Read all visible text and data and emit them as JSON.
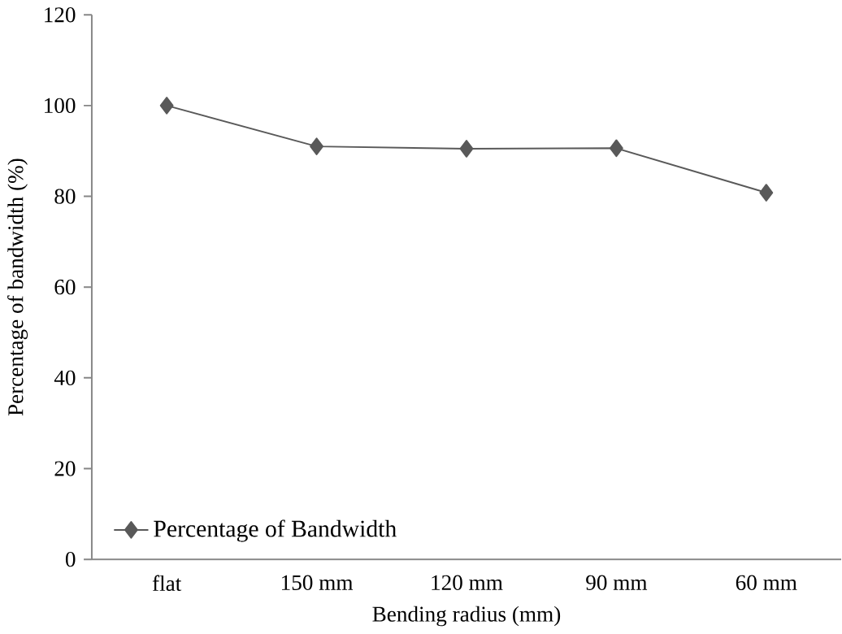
{
  "chart_data": {
    "type": "line",
    "xlabel": "Bending radius (mm)",
    "ylabel": "Percentage of bandwidth (%)",
    "categories": [
      "flat",
      "150 mm",
      "120 mm",
      "90 mm",
      "60 mm"
    ],
    "series": [
      {
        "name": "Percentage of Bandwidth",
        "color": "#595959",
        "values": [
          100,
          91,
          90.5,
          90.6,
          80.8
        ]
      }
    ],
    "ylim": [
      0,
      120
    ],
    "yticks": [
      0,
      20,
      40,
      60,
      80,
      100,
      120
    ],
    "grid": false,
    "legend": "bottom left",
    "marker": "diamond",
    "line_style": "solid"
  }
}
